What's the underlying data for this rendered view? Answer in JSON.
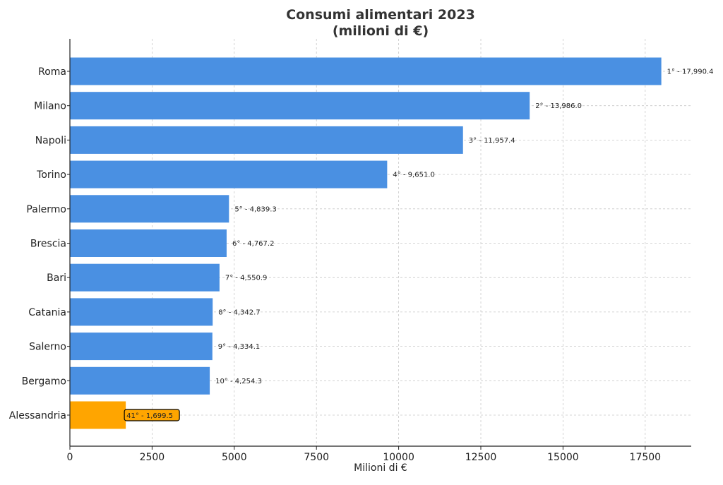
{
  "chart_data": {
    "type": "bar",
    "orientation": "horizontal",
    "title": "Consumi alimentari 2023",
    "subtitle": "(milioni di €)",
    "xlabel": "Milioni di €",
    "ylabel": "",
    "xlim": [
      0,
      18900
    ],
    "xticks": [
      0,
      2500,
      5000,
      7500,
      10000,
      12500,
      15000,
      17500
    ],
    "grid": true,
    "categories": [
      "Roma",
      "Milano",
      "Napoli",
      "Torino",
      "Palermo",
      "Brescia",
      "Bari",
      "Catania",
      "Salerno",
      "Bergamo",
      "Alessandria"
    ],
    "values": [
      17990.4,
      13986.0,
      11957.4,
      9651.0,
      4839.3,
      4767.2,
      4550.9,
      4342.7,
      4334.1,
      4254.3,
      1699.5
    ],
    "labels": [
      "1° - 17,990.4",
      "2° - 13,986.0",
      "3° - 11,957.4",
      "4° - 9,651.0",
      "5° - 4,839.3",
      "6° - 4,767.2",
      "7° - 4,550.9",
      "8° - 4,342.7",
      "9° - 4,334.1",
      "10° - 4,254.3",
      "41° - 1,699.5"
    ],
    "highlight_index": 10,
    "colors": {
      "bar": "#4a90e2",
      "highlight": "#ffa500",
      "highlight_border": "#000000"
    }
  }
}
